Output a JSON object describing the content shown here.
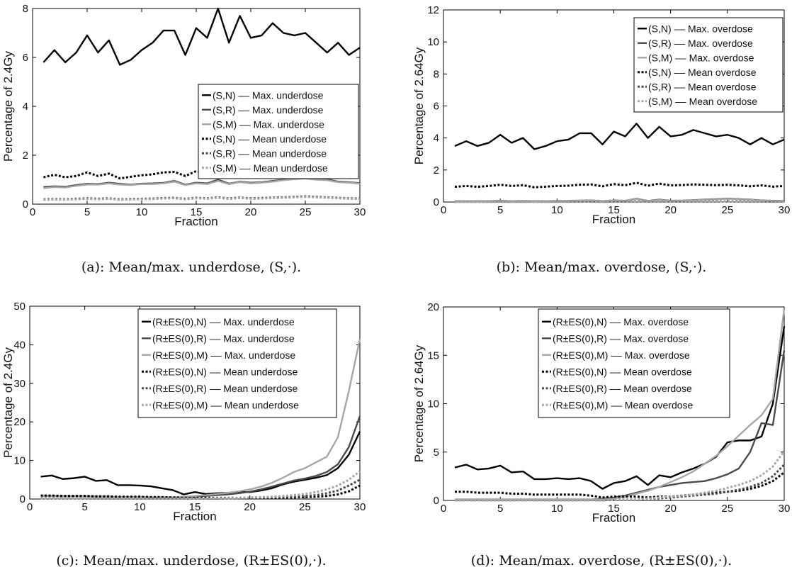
{
  "chart_data": [
    {
      "type": "line",
      "caption": "(a): Mean/max. underdose, (S,·).",
      "xlabel": "Fraction",
      "ylabel": "Percentage of 2.4Gy",
      "xlim": [
        0,
        30
      ],
      "ylim": [
        0,
        8
      ],
      "xticks": [
        0,
        5,
        10,
        15,
        20,
        25,
        30
      ],
      "yticks": [
        0,
        2,
        4,
        6,
        8
      ],
      "legend_position": "right",
      "x": [
        1,
        2,
        3,
        4,
        5,
        6,
        7,
        8,
        9,
        10,
        11,
        12,
        13,
        14,
        15,
        16,
        17,
        18,
        19,
        20,
        21,
        22,
        23,
        24,
        25,
        26,
        27,
        28,
        29,
        30
      ],
      "series": [
        {
          "name": "(S,N) –– Max. underdose",
          "color": "#000000",
          "dash": "solid",
          "values": [
            5.8,
            6.3,
            5.8,
            6.2,
            6.9,
            6.2,
            6.7,
            5.7,
            5.9,
            6.3,
            6.6,
            7.1,
            7.1,
            6.1,
            7.2,
            6.8,
            8.0,
            6.6,
            7.7,
            6.8,
            6.9,
            7.4,
            7.0,
            6.9,
            7.0,
            6.6,
            6.2,
            6.6,
            6.1,
            6.4
          ]
        },
        {
          "name": "(S,R) –– Max. underdose",
          "color": "#4a4a4a",
          "dash": "solid",
          "values": [
            0.7,
            0.73,
            0.71,
            0.78,
            0.83,
            0.82,
            0.88,
            0.83,
            0.8,
            0.84,
            0.85,
            0.87,
            0.95,
            0.8,
            0.88,
            0.85,
            1.0,
            0.84,
            0.92,
            0.88,
            0.9,
            0.95,
            1.0,
            1.05,
            1.1,
            1.05,
            1.02,
            0.92,
            0.9,
            0.86
          ]
        },
        {
          "name": "(S,M) –– Max. underdose",
          "color": "#a6a6a6",
          "dash": "solid",
          "values": [
            0.65,
            0.7,
            0.68,
            0.75,
            0.8,
            0.8,
            0.85,
            0.8,
            0.78,
            0.82,
            0.82,
            0.85,
            0.92,
            0.78,
            0.85,
            0.82,
            0.95,
            0.82,
            0.9,
            0.85,
            0.88,
            0.92,
            0.98,
            1.02,
            1.05,
            1.0,
            0.98,
            0.9,
            0.88,
            0.84
          ]
        },
        {
          "name": "(S,N) –– Mean underdose",
          "color": "#000000",
          "dash": "dotted",
          "values": [
            1.1,
            1.2,
            1.1,
            1.15,
            1.3,
            1.15,
            1.25,
            1.05,
            1.12,
            1.18,
            1.22,
            1.3,
            1.32,
            1.15,
            1.35,
            1.25,
            1.45,
            1.22,
            1.38,
            1.25,
            1.28,
            1.35,
            1.3,
            1.25,
            1.28,
            1.22,
            1.15,
            1.22,
            1.12,
            1.18
          ]
        },
        {
          "name": "(S,R) –– Mean underdose",
          "color": "#4a4a4a",
          "dash": "dotted",
          "values": [
            0.2,
            0.21,
            0.2,
            0.22,
            0.24,
            0.22,
            0.24,
            0.2,
            0.21,
            0.22,
            0.23,
            0.25,
            0.26,
            0.22,
            0.26,
            0.24,
            0.28,
            0.23,
            0.27,
            0.24,
            0.25,
            0.27,
            0.28,
            0.3,
            0.32,
            0.3,
            0.28,
            0.26,
            0.24,
            0.23
          ]
        },
        {
          "name": "(S,M) –– Mean underdose",
          "color": "#a6a6a6",
          "dash": "dotted",
          "values": [
            0.18,
            0.19,
            0.18,
            0.2,
            0.22,
            0.2,
            0.22,
            0.18,
            0.19,
            0.2,
            0.21,
            0.23,
            0.24,
            0.2,
            0.24,
            0.22,
            0.26,
            0.21,
            0.25,
            0.22,
            0.23,
            0.25,
            0.26,
            0.28,
            0.3,
            0.28,
            0.26,
            0.24,
            0.22,
            0.21
          ]
        }
      ]
    },
    {
      "type": "line",
      "caption": "(b): Mean/max. overdose, (S,·).",
      "xlabel": "Fraction",
      "ylabel": "Percentage of 2.64Gy",
      "xlim": [
        0,
        30
      ],
      "ylim": [
        0,
        12
      ],
      "xticks": [
        0,
        5,
        10,
        15,
        20,
        25,
        30
      ],
      "yticks": [
        0,
        2,
        4,
        6,
        8,
        10,
        12
      ],
      "legend_position": "top-right",
      "x": [
        1,
        2,
        3,
        4,
        5,
        6,
        7,
        8,
        9,
        10,
        11,
        12,
        13,
        14,
        15,
        16,
        17,
        18,
        19,
        20,
        21,
        22,
        23,
        24,
        25,
        26,
        27,
        28,
        29,
        30
      ],
      "series": [
        {
          "name": "(S,N) –– Max. overdose",
          "color": "#000000",
          "dash": "solid",
          "values": [
            3.5,
            3.8,
            3.5,
            3.7,
            4.2,
            3.7,
            4.0,
            3.3,
            3.5,
            3.8,
            3.9,
            4.3,
            4.3,
            3.6,
            4.4,
            4.1,
            4.9,
            4.0,
            4.7,
            4.1,
            4.2,
            4.5,
            4.3,
            4.1,
            4.2,
            4.0,
            3.6,
            4.0,
            3.6,
            3.9
          ]
        },
        {
          "name": "(S,R) –– Max. overdose",
          "color": "#4a4a4a",
          "dash": "solid",
          "values": [
            0.05,
            0.06,
            0.05,
            0.06,
            0.08,
            0.06,
            0.07,
            0.05,
            0.06,
            0.07,
            0.07,
            0.09,
            0.1,
            0.06,
            0.1,
            0.08,
            0.2,
            0.07,
            0.15,
            0.08,
            0.09,
            0.12,
            0.15,
            0.18,
            0.22,
            0.18,
            0.15,
            0.1,
            0.08,
            0.07
          ]
        },
        {
          "name": "(S,M) –– Max. overdose",
          "color": "#a6a6a6",
          "dash": "solid",
          "values": [
            0.04,
            0.05,
            0.04,
            0.05,
            0.07,
            0.05,
            0.06,
            0.04,
            0.05,
            0.06,
            0.06,
            0.08,
            0.09,
            0.05,
            0.09,
            0.07,
            0.18,
            0.06,
            0.13,
            0.07,
            0.08,
            0.11,
            0.13,
            0.16,
            0.2,
            0.16,
            0.13,
            0.09,
            0.07,
            0.06
          ]
        },
        {
          "name": "(S,N) –– Mean overdose",
          "color": "#000000",
          "dash": "dotted",
          "values": [
            0.95,
            1.0,
            0.95,
            1.0,
            1.08,
            1.0,
            1.05,
            0.92,
            0.96,
            1.0,
            1.02,
            1.08,
            1.1,
            0.98,
            1.12,
            1.05,
            1.2,
            1.02,
            1.15,
            1.04,
            1.06,
            1.1,
            1.08,
            1.05,
            1.08,
            1.04,
            0.98,
            1.04,
            0.96,
            1.0
          ]
        },
        {
          "name": "(S,R) –– Mean overdose",
          "color": "#4a4a4a",
          "dash": "dotted",
          "values": [
            0.01,
            0.01,
            0.01,
            0.01,
            0.02,
            0.01,
            0.02,
            0.01,
            0.01,
            0.02,
            0.02,
            0.02,
            0.02,
            0.01,
            0.02,
            0.02,
            0.04,
            0.02,
            0.03,
            0.02,
            0.02,
            0.03,
            0.03,
            0.04,
            0.05,
            0.04,
            0.03,
            0.02,
            0.02,
            0.02
          ]
        },
        {
          "name": "(S,M) –– Mean overdose",
          "color": "#a6a6a6",
          "dash": "dotted",
          "values": [
            0.01,
            0.01,
            0.01,
            0.01,
            0.01,
            0.01,
            0.01,
            0.01,
            0.01,
            0.01,
            0.01,
            0.02,
            0.02,
            0.01,
            0.02,
            0.01,
            0.03,
            0.01,
            0.02,
            0.01,
            0.02,
            0.02,
            0.02,
            0.03,
            0.04,
            0.03,
            0.02,
            0.02,
            0.01,
            0.01
          ]
        }
      ]
    },
    {
      "type": "line",
      "caption": "(c): Mean/max. underdose, (R±ES(0),·).",
      "xlabel": "Fraction",
      "ylabel": "Percentage of 2.4Gy",
      "xlim": [
        0,
        30
      ],
      "ylim": [
        0,
        50
      ],
      "xticks": [
        0,
        5,
        10,
        15,
        20,
        25,
        30
      ],
      "yticks": [
        0,
        10,
        20,
        30,
        40,
        50
      ],
      "legend_position": "top-right",
      "x": [
        1,
        2,
        3,
        4,
        5,
        6,
        7,
        8,
        9,
        10,
        11,
        12,
        13,
        14,
        15,
        16,
        17,
        18,
        19,
        20,
        21,
        22,
        23,
        24,
        25,
        26,
        27,
        28,
        29,
        30
      ],
      "series": [
        {
          "name": "(R±ES(0),N) –– Max. underdose",
          "color": "#000000",
          "dash": "solid",
          "values": [
            5.8,
            6.1,
            5.2,
            5.4,
            5.8,
            4.7,
            4.9,
            3.6,
            3.6,
            3.5,
            3.3,
            2.8,
            2.3,
            1.2,
            1.8,
            1.3,
            1.5,
            1.6,
            1.8,
            1.8,
            2.2,
            2.8,
            3.8,
            4.5,
            5.0,
            5.5,
            6.2,
            8.0,
            11.5,
            17.5
          ]
        },
        {
          "name": "(R±ES(0),R) –– Max. underdose",
          "color": "#4a4a4a",
          "dash": "solid",
          "values": [
            0.8,
            0.8,
            0.7,
            0.7,
            0.7,
            0.6,
            0.6,
            0.5,
            0.5,
            0.5,
            0.4,
            0.4,
            0.4,
            0.5,
            0.6,
            0.8,
            1.0,
            1.2,
            1.5,
            1.9,
            2.5,
            3.2,
            4.0,
            4.8,
            5.3,
            6.0,
            7.0,
            9.0,
            13.5,
            21.5
          ]
        },
        {
          "name": "(R±ES(0),M) –– Max. underdose",
          "color": "#a6a6a6",
          "dash": "solid",
          "values": [
            0.7,
            0.7,
            0.6,
            0.6,
            0.6,
            0.5,
            0.5,
            0.5,
            0.5,
            0.5,
            0.5,
            0.5,
            0.5,
            0.6,
            0.8,
            1.0,
            1.3,
            1.6,
            2.0,
            2.5,
            3.2,
            4.2,
            5.5,
            7.0,
            8.0,
            9.5,
            11.0,
            16.0,
            28.0,
            41.5
          ]
        },
        {
          "name": "(R±ES(0),N) –– Mean underdose",
          "color": "#000000",
          "dash": "dotted",
          "values": [
            0.9,
            0.9,
            0.8,
            0.8,
            0.8,
            0.7,
            0.7,
            0.6,
            0.6,
            0.6,
            0.5,
            0.5,
            0.4,
            0.3,
            0.3,
            0.3,
            0.3,
            0.3,
            0.3,
            0.3,
            0.3,
            0.3,
            0.4,
            0.4,
            0.5,
            0.6,
            0.8,
            1.2,
            2.0,
            3.5
          ]
        },
        {
          "name": "(R±ES(0),R) –– Mean underdose",
          "color": "#4a4a4a",
          "dash": "dotted",
          "values": [
            0.2,
            0.2,
            0.2,
            0.2,
            0.2,
            0.1,
            0.1,
            0.1,
            0.1,
            0.1,
            0.1,
            0.1,
            0.1,
            0.1,
            0.1,
            0.1,
            0.1,
            0.2,
            0.2,
            0.3,
            0.3,
            0.4,
            0.5,
            0.6,
            0.8,
            1.0,
            1.5,
            2.2,
            3.5,
            5.0
          ]
        },
        {
          "name": "(R±ES(0),M) –– Mean underdose",
          "color": "#a6a6a6",
          "dash": "dotted",
          "values": [
            0.2,
            0.2,
            0.2,
            0.2,
            0.2,
            0.1,
            0.1,
            0.1,
            0.1,
            0.1,
            0.1,
            0.1,
            0.1,
            0.1,
            0.1,
            0.1,
            0.2,
            0.2,
            0.3,
            0.4,
            0.5,
            0.6,
            0.8,
            1.0,
            1.3,
            1.8,
            2.5,
            3.5,
            5.0,
            7.2
          ]
        }
      ]
    },
    {
      "type": "line",
      "caption": "(d): Mean/max. overdose, (R±ES(0),·).",
      "xlabel": "Fraction",
      "ylabel": "Percentage of 2.64Gy",
      "xlim": [
        0,
        30
      ],
      "ylim": [
        0,
        20
      ],
      "xticks": [
        0,
        5,
        10,
        15,
        20,
        25,
        30
      ],
      "yticks": [
        0,
        5,
        10,
        15,
        20
      ],
      "legend_position": "top-right",
      "x": [
        1,
        2,
        3,
        4,
        5,
        6,
        7,
        8,
        9,
        10,
        11,
        12,
        13,
        14,
        15,
        16,
        17,
        18,
        19,
        20,
        21,
        22,
        23,
        24,
        25,
        26,
        27,
        28,
        29,
        30
      ],
      "series": [
        {
          "name": "(R±ES(0),N) –– Max. overdose",
          "color": "#000000",
          "dash": "solid",
          "values": [
            3.4,
            3.7,
            3.2,
            3.3,
            3.6,
            2.9,
            3.0,
            2.2,
            2.2,
            2.3,
            2.2,
            2.3,
            2.0,
            1.2,
            1.8,
            2.0,
            2.5,
            1.6,
            2.6,
            2.4,
            2.9,
            3.3,
            3.8,
            4.5,
            6.0,
            6.2,
            6.2,
            6.6,
            10.0,
            18.0
          ]
        },
        {
          "name": "(R±ES(0),R) –– Max. overdose",
          "color": "#4a4a4a",
          "dash": "solid",
          "values": [
            0.1,
            0.1,
            0.1,
            0.1,
            0.1,
            0.1,
            0.1,
            0.1,
            0.1,
            0.1,
            0.1,
            0.1,
            0.1,
            0.2,
            0.3,
            0.5,
            0.8,
            1.1,
            1.4,
            1.6,
            1.8,
            1.9,
            2.0,
            2.3,
            2.7,
            3.3,
            5.0,
            8.0,
            7.8,
            15.5
          ]
        },
        {
          "name": "(R±ES(0),M) –– Max. overdose",
          "color": "#a6a6a6",
          "dash": "solid",
          "values": [
            0.1,
            0.1,
            0.1,
            0.1,
            0.1,
            0.1,
            0.1,
            0.1,
            0.1,
            0.1,
            0.1,
            0.1,
            0.1,
            0.1,
            0.2,
            0.4,
            0.7,
            1.0,
            1.4,
            1.9,
            2.4,
            3.0,
            3.8,
            4.6,
            5.6,
            6.7,
            7.8,
            8.8,
            10.5,
            19.8
          ]
        },
        {
          "name": "(R±ES(0),N) –– Mean overdose",
          "color": "#000000",
          "dash": "dotted",
          "values": [
            0.9,
            0.9,
            0.8,
            0.8,
            0.8,
            0.7,
            0.7,
            0.6,
            0.6,
            0.6,
            0.6,
            0.6,
            0.5,
            0.3,
            0.4,
            0.4,
            0.4,
            0.3,
            0.4,
            0.4,
            0.5,
            0.6,
            0.7,
            0.8,
            0.9,
            1.0,
            1.2,
            1.5,
            2.0,
            2.9
          ]
        },
        {
          "name": "(R±ES(0),R) –– Mean overdose",
          "color": "#4a4a4a",
          "dash": "dotted",
          "values": [
            0.0,
            0.0,
            0.0,
            0.0,
            0.0,
            0.0,
            0.0,
            0.0,
            0.0,
            0.0,
            0.0,
            0.0,
            0.0,
            0.0,
            0.1,
            0.1,
            0.1,
            0.2,
            0.2,
            0.3,
            0.4,
            0.5,
            0.6,
            0.7,
            0.9,
            1.1,
            1.4,
            1.8,
            2.5,
            3.7
          ]
        },
        {
          "name": "(R±ES(0),M) –– Mean overdose",
          "color": "#a6a6a6",
          "dash": "dotted",
          "values": [
            0.0,
            0.0,
            0.0,
            0.0,
            0.0,
            0.0,
            0.0,
            0.0,
            0.0,
            0.0,
            0.0,
            0.0,
            0.0,
            0.0,
            0.1,
            0.1,
            0.1,
            0.2,
            0.3,
            0.4,
            0.5,
            0.6,
            0.8,
            1.0,
            1.3,
            1.6,
            2.0,
            2.6,
            3.5,
            5.1
          ]
        }
      ]
    }
  ]
}
